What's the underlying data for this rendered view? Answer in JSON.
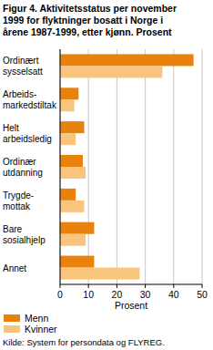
{
  "chart_data": {
    "type": "bar",
    "orientation": "horizontal",
    "title": "Figur 4. Aktivitetsstatus per november\n1999 for flyktninger bosatt i Norge i\nårene 1987-1999, etter kjønn. Prosent",
    "x_label": "Prosent",
    "source": "Kilde: System for persondata og FLYREG.",
    "categories": [
      "Ordinært\nsysselsatt",
      "Arbeids-\nmarkedstiltak",
      "Helt\narbeidsledig",
      "Ordinær\nutdanning",
      "Trygde-\nmottak",
      "Bare\nsosialhjelp",
      "Annet"
    ],
    "series": [
      {
        "name": "Menn",
        "color": "#e8820c",
        "values": [
          47,
          6.5,
          8.5,
          8,
          5.5,
          12,
          12
        ]
      },
      {
        "name": "Kvinner",
        "color": "#f9c47e",
        "values": [
          36,
          5,
          5.5,
          9,
          8.5,
          9,
          28
        ]
      }
    ],
    "xlim": [
      0,
      50
    ],
    "xticks": [
      0,
      10,
      20,
      30,
      40,
      50
    ],
    "grid": true,
    "legend": "bottom"
  }
}
